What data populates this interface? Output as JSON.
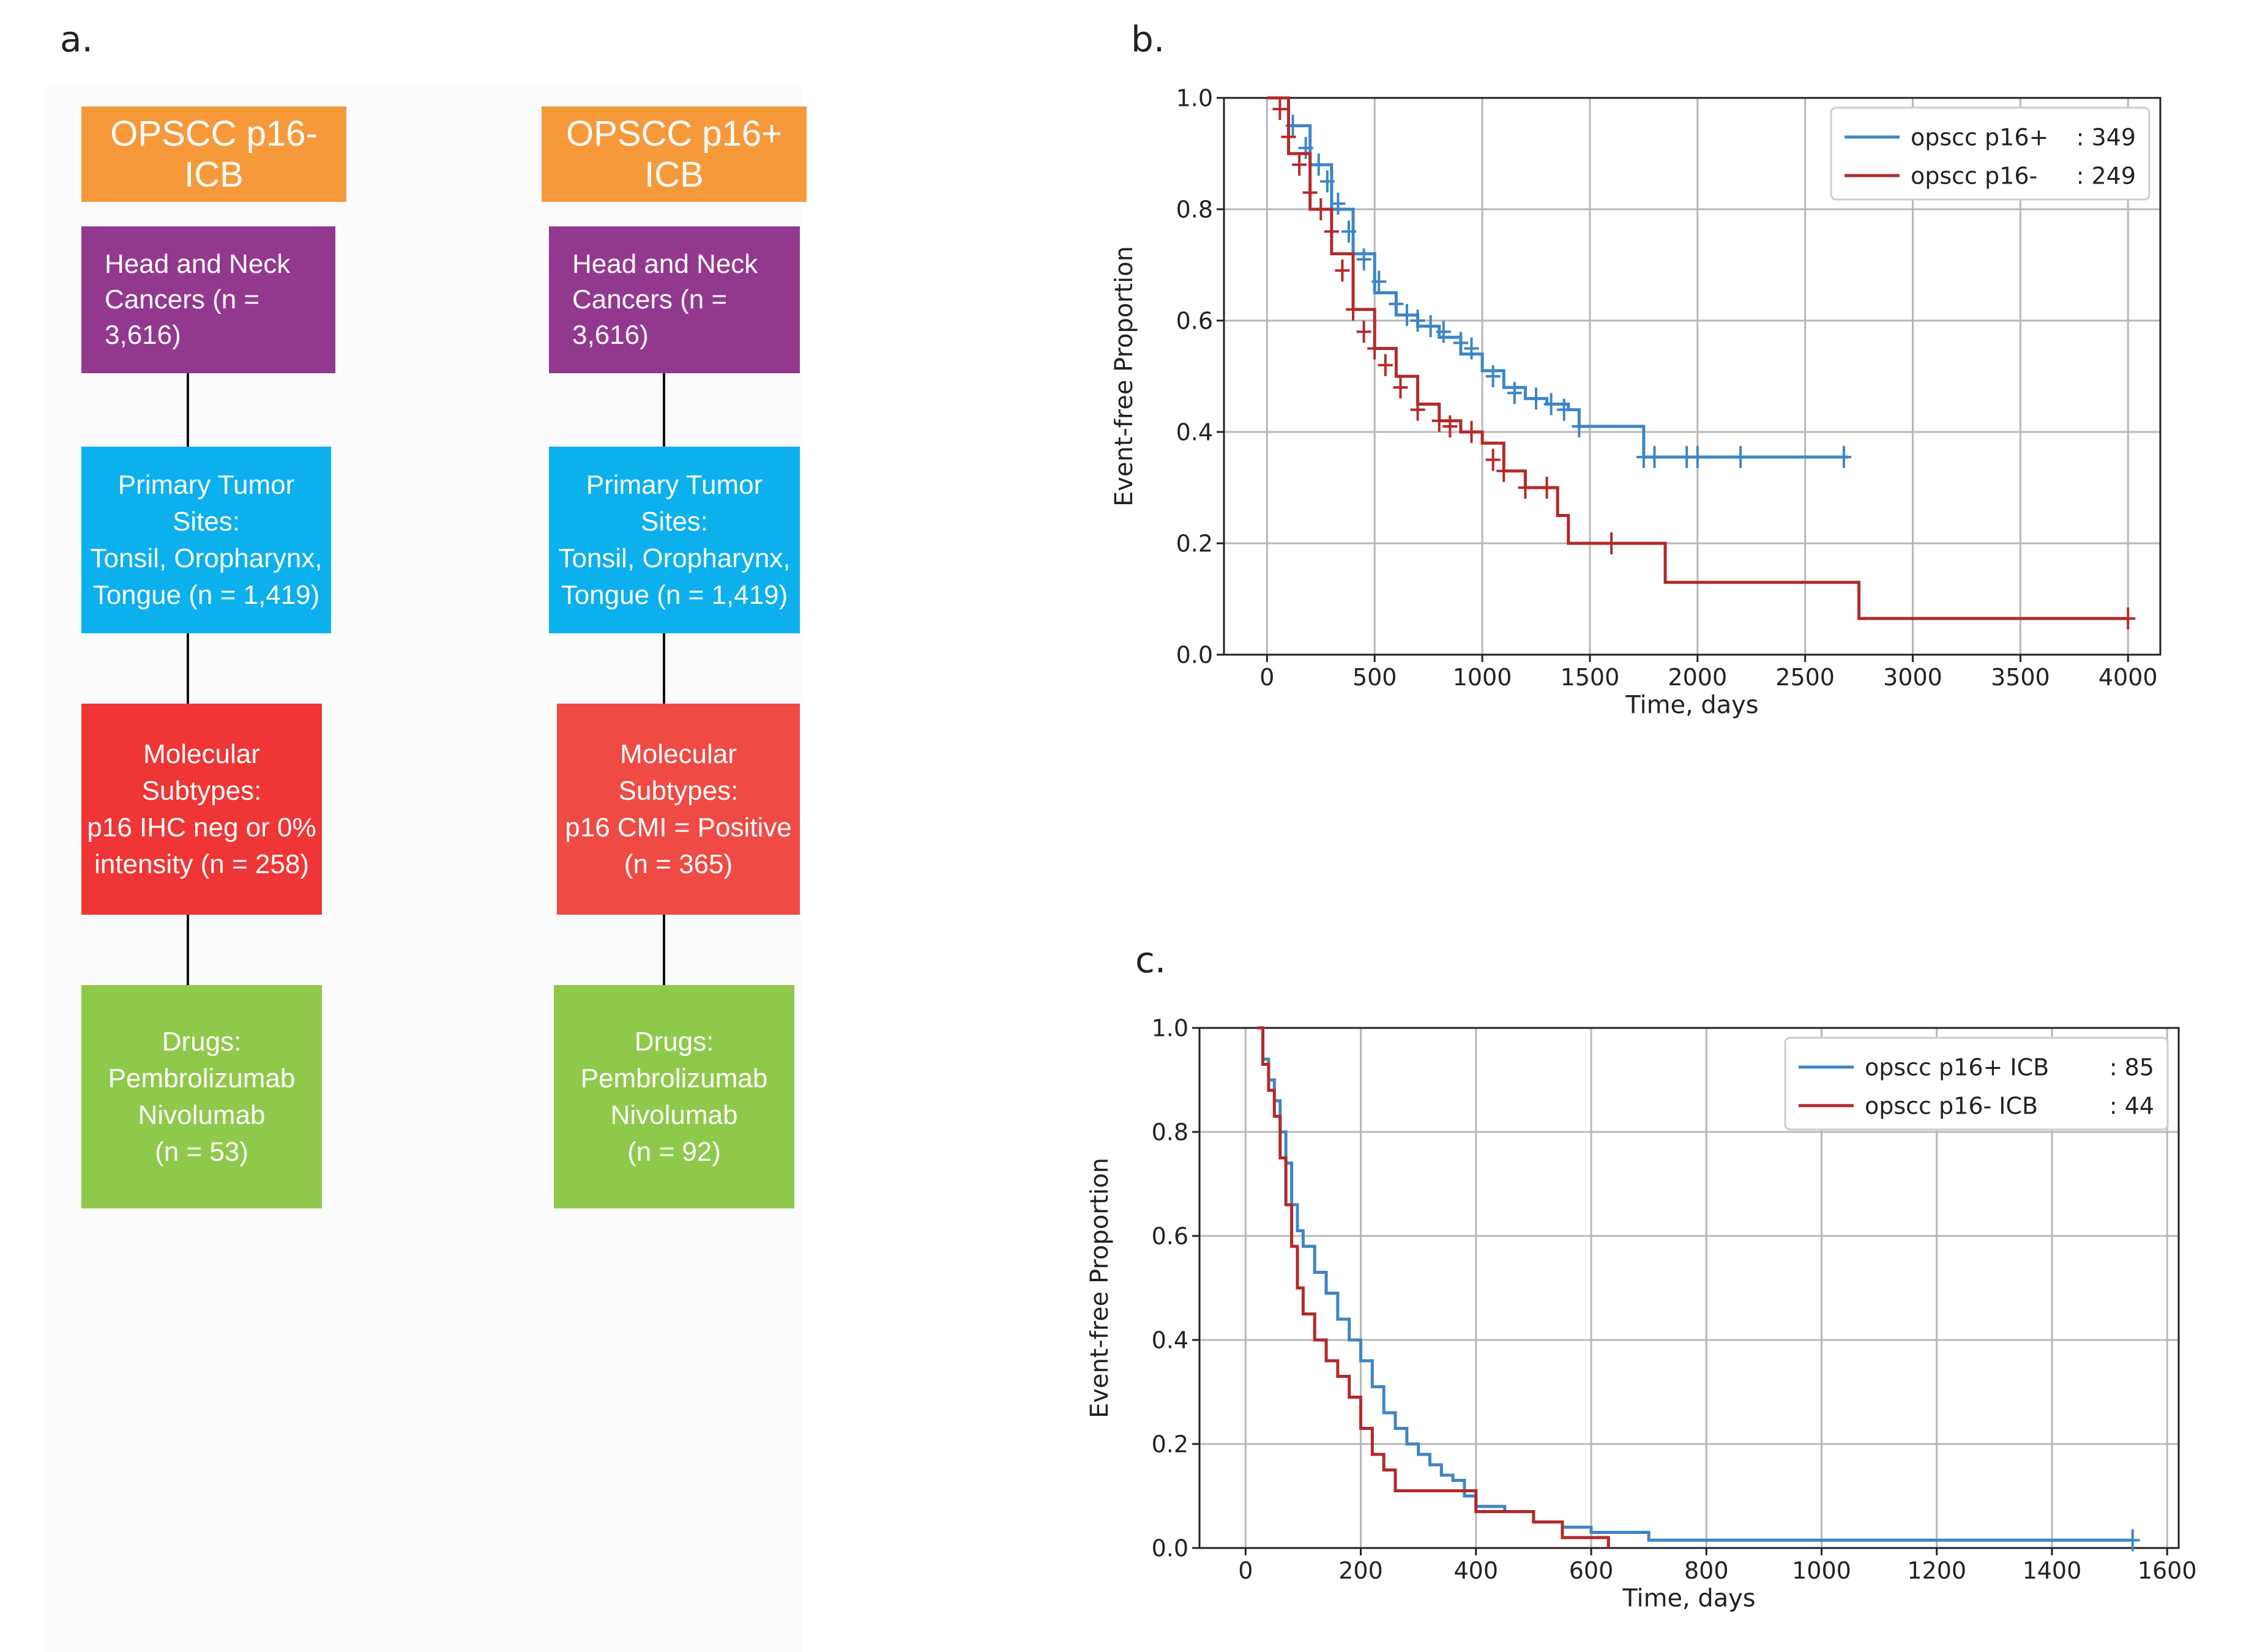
{
  "panels": {
    "a": "a.",
    "b": "b.",
    "c": "c."
  },
  "flowchart": {
    "columns": [
      {
        "header": "OPSCC p16- ICB",
        "steps": [
          {
            "kind": "cohort",
            "text": "Head and Neck\nCancers (n = 3,616)"
          },
          {
            "kind": "sites",
            "text": "Primary Tumor Sites:\nTonsil, Oropharynx,\nTongue (n = 1,419)"
          },
          {
            "kind": "subtype",
            "text": "Molecular Subtypes:\np16 IHC neg or 0%\nintensity (n = 258)"
          },
          {
            "kind": "drugs",
            "text": "Drugs:\nPembrolizumab\nNivolumab\n(n = 53)"
          }
        ]
      },
      {
        "header": "OPSCC p16+ ICB",
        "steps": [
          {
            "kind": "cohort",
            "text": "Head and Neck\nCancers (n = 3,616)"
          },
          {
            "kind": "sites",
            "text": "Primary Tumor Sites:\nTonsil, Oropharynx,\nTongue (n = 1,419)"
          },
          {
            "kind": "subtype",
            "text": "Molecular Subtypes:\np16 CMI = Positive\n(n = 365)"
          },
          {
            "kind": "drugs",
            "text": "Drugs:\nPembrolizumab\nNivolumab\n(n = 92)"
          }
        ]
      }
    ]
  },
  "colors": {
    "blue": "#3d85c6",
    "red": "#b22a2a",
    "grid": "#b8b8b8"
  },
  "chart_data": [
    {
      "type": "line",
      "panel": "b.",
      "title": "",
      "xlabel": "Time, days",
      "ylabel": "Event-free Proportion",
      "xlim": [
        -200,
        4150
      ],
      "ylim": [
        0,
        1
      ],
      "xticks": [
        0,
        500,
        1000,
        1500,
        2000,
        2500,
        3000,
        3500,
        4000
      ],
      "yticks": [
        0.0,
        0.2,
        0.4,
        0.6,
        0.8,
        1.0
      ],
      "grid": true,
      "legend_position": "top-right",
      "series": [
        {
          "name": "opscc p16+",
          "count": ": 349",
          "color": "#3d85c6",
          "x": [
            0,
            100,
            200,
            300,
            400,
            500,
            600,
            700,
            800,
            900,
            1000,
            1100,
            1200,
            1300,
            1400,
            1450,
            1700,
            1750,
            2700
          ],
          "y": [
            1.0,
            0.95,
            0.88,
            0.8,
            0.72,
            0.65,
            0.61,
            0.59,
            0.57,
            0.54,
            0.51,
            0.48,
            0.46,
            0.45,
            0.44,
            0.41,
            0.41,
            0.355,
            0.355
          ],
          "censor_x": [
            120,
            180,
            240,
            280,
            330,
            380,
            450,
            520,
            600,
            650,
            700,
            760,
            820,
            900,
            950,
            1050,
            1150,
            1250,
            1320,
            1380,
            1450,
            1750,
            1800,
            1950,
            2000,
            2200,
            2680
          ],
          "censor_y": [
            0.95,
            0.91,
            0.88,
            0.85,
            0.81,
            0.76,
            0.71,
            0.67,
            0.63,
            0.61,
            0.6,
            0.59,
            0.58,
            0.56,
            0.55,
            0.5,
            0.47,
            0.46,
            0.45,
            0.44,
            0.41,
            0.355,
            0.355,
            0.355,
            0.355,
            0.355,
            0.355
          ]
        },
        {
          "name": "opscc p16-",
          "count": ": 249",
          "color": "#b22a2a",
          "x": [
            0,
            100,
            200,
            300,
            400,
            500,
            600,
            700,
            800,
            900,
            1000,
            1100,
            1200,
            1300,
            1350,
            1400,
            1850,
            2750,
            4000
          ],
          "y": [
            1.0,
            0.9,
            0.8,
            0.72,
            0.62,
            0.55,
            0.5,
            0.45,
            0.42,
            0.4,
            0.38,
            0.33,
            0.3,
            0.3,
            0.25,
            0.2,
            0.13,
            0.065,
            0.065
          ],
          "censor_x": [
            60,
            100,
            150,
            200,
            250,
            300,
            350,
            400,
            450,
            500,
            550,
            620,
            700,
            800,
            850,
            950,
            1050,
            1100,
            1200,
            1300,
            1600,
            4000
          ],
          "censor_y": [
            0.98,
            0.93,
            0.88,
            0.83,
            0.8,
            0.76,
            0.69,
            0.62,
            0.58,
            0.55,
            0.52,
            0.48,
            0.44,
            0.42,
            0.41,
            0.4,
            0.35,
            0.33,
            0.3,
            0.3,
            0.2,
            0.065
          ]
        }
      ]
    },
    {
      "type": "line",
      "panel": "c.",
      "title": "",
      "xlabel": "Time, days",
      "ylabel": "Event-free Proportion",
      "xlim": [
        -80,
        1620
      ],
      "ylim": [
        0,
        1
      ],
      "xticks": [
        0,
        200,
        400,
        600,
        800,
        1000,
        1200,
        1400,
        1600
      ],
      "yticks": [
        0.0,
        0.2,
        0.4,
        0.6,
        0.8,
        1.0
      ],
      "grid": true,
      "legend_position": "top-right",
      "series": [
        {
          "name": "opscc p16+ ICB",
          "count": ": 85",
          "color": "#3d85c6",
          "x": [
            20,
            30,
            40,
            50,
            60,
            70,
            80,
            90,
            100,
            120,
            140,
            160,
            180,
            200,
            220,
            240,
            260,
            280,
            300,
            320,
            340,
            360,
            380,
            400,
            450,
            500,
            550,
            600,
            700,
            1540
          ],
          "y": [
            1.0,
            0.94,
            0.9,
            0.86,
            0.8,
            0.74,
            0.66,
            0.61,
            0.58,
            0.53,
            0.49,
            0.44,
            0.4,
            0.36,
            0.31,
            0.26,
            0.23,
            0.2,
            0.18,
            0.16,
            0.14,
            0.13,
            0.1,
            0.08,
            0.07,
            0.05,
            0.04,
            0.03,
            0.015,
            0.015
          ],
          "censor_x": [
            1540
          ],
          "censor_y": [
            0.015
          ]
        },
        {
          "name": "opscc p16- ICB",
          "count": ": 44",
          "color": "#b22a2a",
          "x": [
            20,
            30,
            40,
            50,
            60,
            70,
            80,
            90,
            100,
            120,
            140,
            160,
            180,
            200,
            220,
            240,
            260,
            400,
            500,
            550,
            630
          ],
          "y": [
            1.0,
            0.93,
            0.88,
            0.83,
            0.75,
            0.66,
            0.58,
            0.5,
            0.45,
            0.4,
            0.36,
            0.33,
            0.29,
            0.23,
            0.18,
            0.15,
            0.11,
            0.07,
            0.05,
            0.02,
            0.0
          ],
          "censor_x": [],
          "censor_y": []
        }
      ]
    }
  ]
}
